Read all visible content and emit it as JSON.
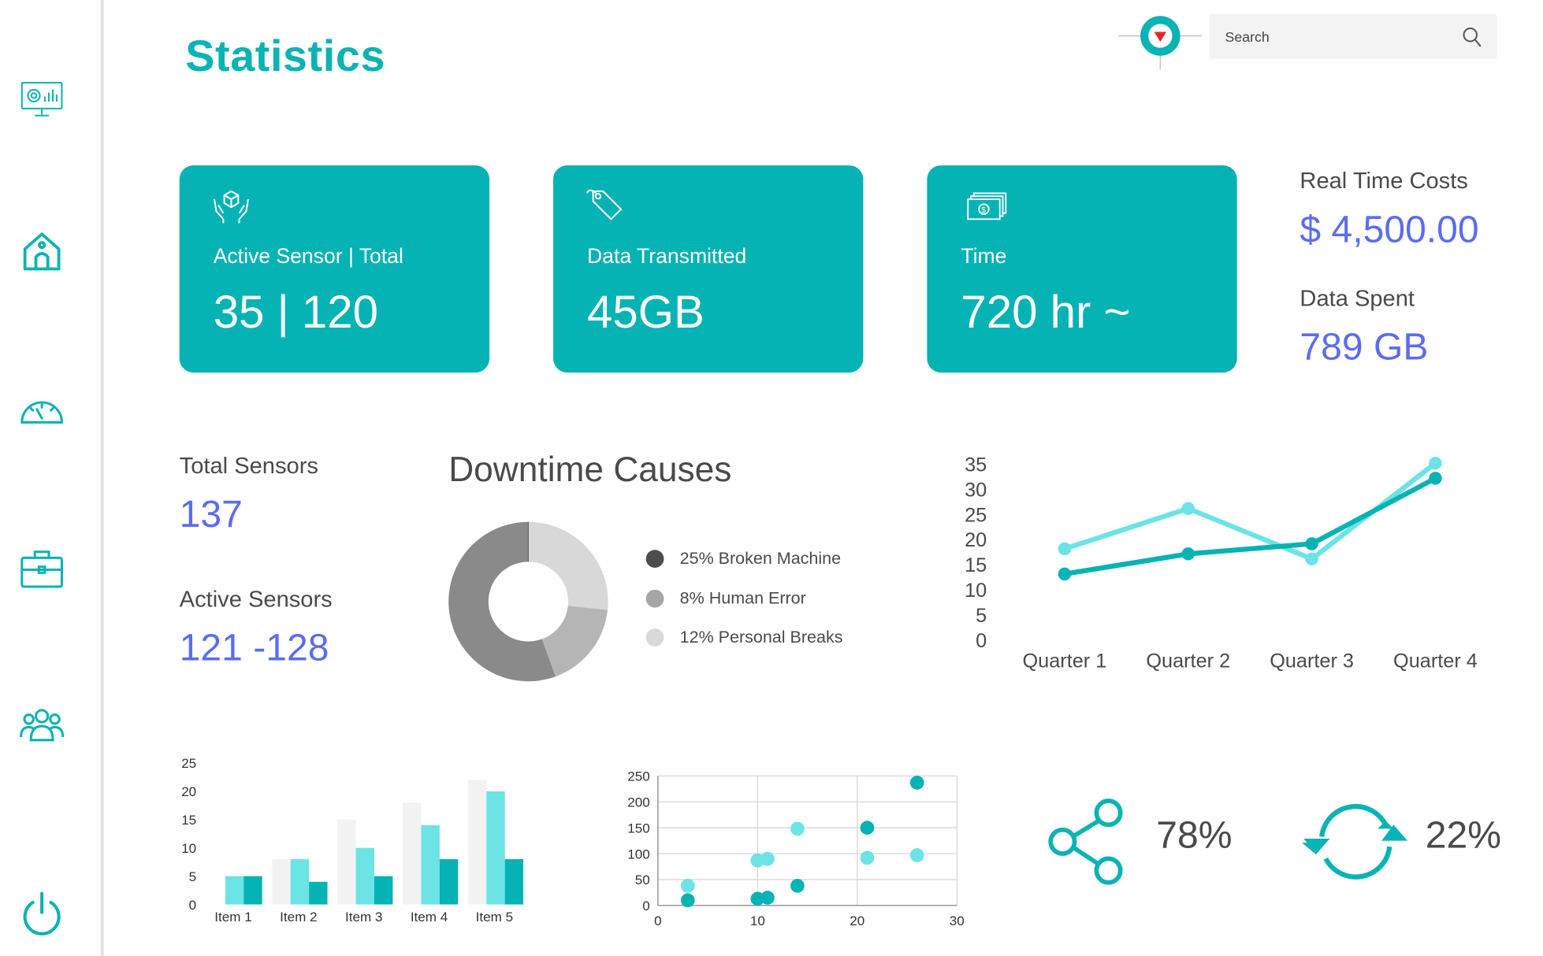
{
  "title": "Statistics",
  "search": {
    "placeholder": "Search"
  },
  "sidebar": {
    "icons": [
      "monitor-icon",
      "home-icon",
      "gauge-icon",
      "briefcase-icon",
      "users-icon",
      "power-icon"
    ]
  },
  "cards": [
    {
      "icon": "box-in-hands-icon",
      "label": "Active Sensor | Total",
      "value": "35 | 120"
    },
    {
      "icon": "tag-icon",
      "label": "Data Transmitted",
      "value": "45GB"
    },
    {
      "icon": "money-icon",
      "label": "Time",
      "value": "720 hr ~"
    }
  ],
  "costs": {
    "real_time_label": "Real Time Costs",
    "real_time_value": "$ 4,500.00",
    "data_spent_label": "Data Spent",
    "data_spent_value": "789 GB"
  },
  "sensors": {
    "total_label": "Total Sensors",
    "total_value": "137",
    "active_label": "Active Sensors",
    "active_value": "121 -128"
  },
  "downtime": {
    "title": "Downtime Causes"
  },
  "metrics": {
    "share_pct": "78%",
    "sync_pct": "22%"
  },
  "colors": {
    "teal": "#06b3b4",
    "light_teal": "#6ce3e5",
    "blue": "#5b6cf2",
    "bar_bg": "#f2f2f2"
  },
  "chart_data": [
    {
      "type": "pie",
      "title": "Downtime Causes",
      "labels": [
        "25% Broken Machine",
        "8% Human Error",
        "12% Personal Breaks"
      ],
      "values": [
        25,
        8,
        12
      ],
      "colors": [
        "#8a8a8a",
        "#b5b5b5",
        "#d8d8d8"
      ],
      "legend_colors": [
        "#4d4d4d",
        "#a6a6a6",
        "#d9d9d9"
      ],
      "donut": true
    },
    {
      "type": "line",
      "categories": [
        "Quarter 1",
        "Quarter 2",
        "Quarter 3",
        "Quarter 4"
      ],
      "series": [
        {
          "values": [
            18,
            26,
            16,
            35
          ],
          "color": "#6ce3e5"
        },
        {
          "values": [
            13,
            17,
            19,
            32
          ],
          "color": "#06b3b4"
        }
      ],
      "ylim": [
        0,
        35
      ],
      "yticks": [
        0,
        5,
        10,
        15,
        20,
        25,
        30,
        35
      ]
    },
    {
      "type": "bar",
      "categories": [
        "Item 1",
        "Item 2",
        "Item 3",
        "Item 4",
        "Item 5"
      ],
      "series": [
        {
          "values": [
            0,
            8,
            15,
            18,
            22
          ],
          "color": "#f2f2f2"
        },
        {
          "values": [
            5,
            8,
            10,
            14,
            20
          ],
          "color": "#6ce3e5"
        },
        {
          "values": [
            5,
            4,
            5,
            8,
            8
          ],
          "color": "#06b3b4"
        }
      ],
      "ylim": [
        0,
        25
      ],
      "yticks": [
        0,
        5,
        10,
        15,
        20,
        25
      ]
    },
    {
      "type": "scatter",
      "xlim": [
        0,
        30
      ],
      "ylim": [
        0,
        250
      ],
      "xticks": [
        0,
        10,
        20,
        30
      ],
      "yticks": [
        0,
        50,
        100,
        150,
        200,
        250
      ],
      "grid": true,
      "series": [
        {
          "points": [
            [
              3,
              38
            ],
            [
              10,
              87
            ],
            [
              11,
              90
            ],
            [
              14,
              148
            ],
            [
              21,
              92
            ],
            [
              26,
              97
            ]
          ],
          "color": "#6ce3e5"
        },
        {
          "points": [
            [
              3,
              10
            ],
            [
              10,
              13
            ],
            [
              11,
              15
            ],
            [
              14,
              38
            ],
            [
              21,
              150
            ],
            [
              26,
              237
            ]
          ],
          "color": "#06b3b4"
        }
      ]
    }
  ]
}
